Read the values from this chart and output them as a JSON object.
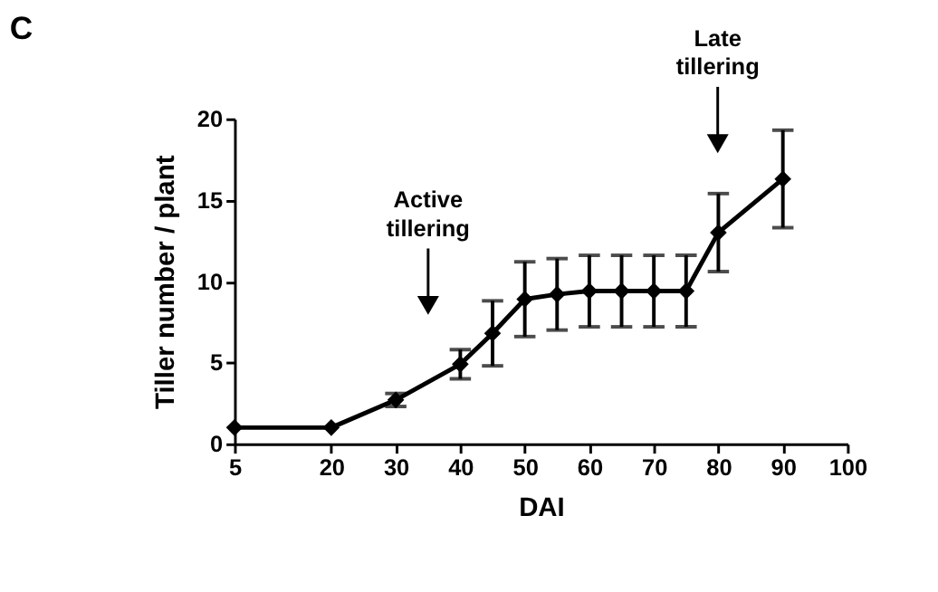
{
  "chart_data": {
    "type": "line",
    "title": "C",
    "xlabel": "DAI",
    "ylabel": "Tiller number / plant",
    "x": [
      5,
      20,
      30,
      40,
      45,
      50,
      55,
      60,
      65,
      70,
      75,
      80,
      90
    ],
    "values": [
      1,
      1,
      2.7,
      4.9,
      6.8,
      8.9,
      9.2,
      9.4,
      9.4,
      9.4,
      9.4,
      13.0,
      16.3
    ],
    "errors": [
      null,
      null,
      0.4,
      0.9,
      2.0,
      2.3,
      2.2,
      2.2,
      2.2,
      2.2,
      2.2,
      2.4,
      3.0
    ],
    "color": "#000000",
    "marker": "diamond",
    "line_style": "solid",
    "grid": false,
    "xlim": [
      5,
      100
    ],
    "xticks": [
      5,
      20,
      30,
      40,
      50,
      60,
      70,
      80,
      90,
      100
    ],
    "ylim": [
      0,
      20
    ],
    "yticks": [
      0,
      5,
      10,
      15,
      20
    ],
    "annotations": [
      "Active tillering",
      "Late tillering"
    ]
  }
}
